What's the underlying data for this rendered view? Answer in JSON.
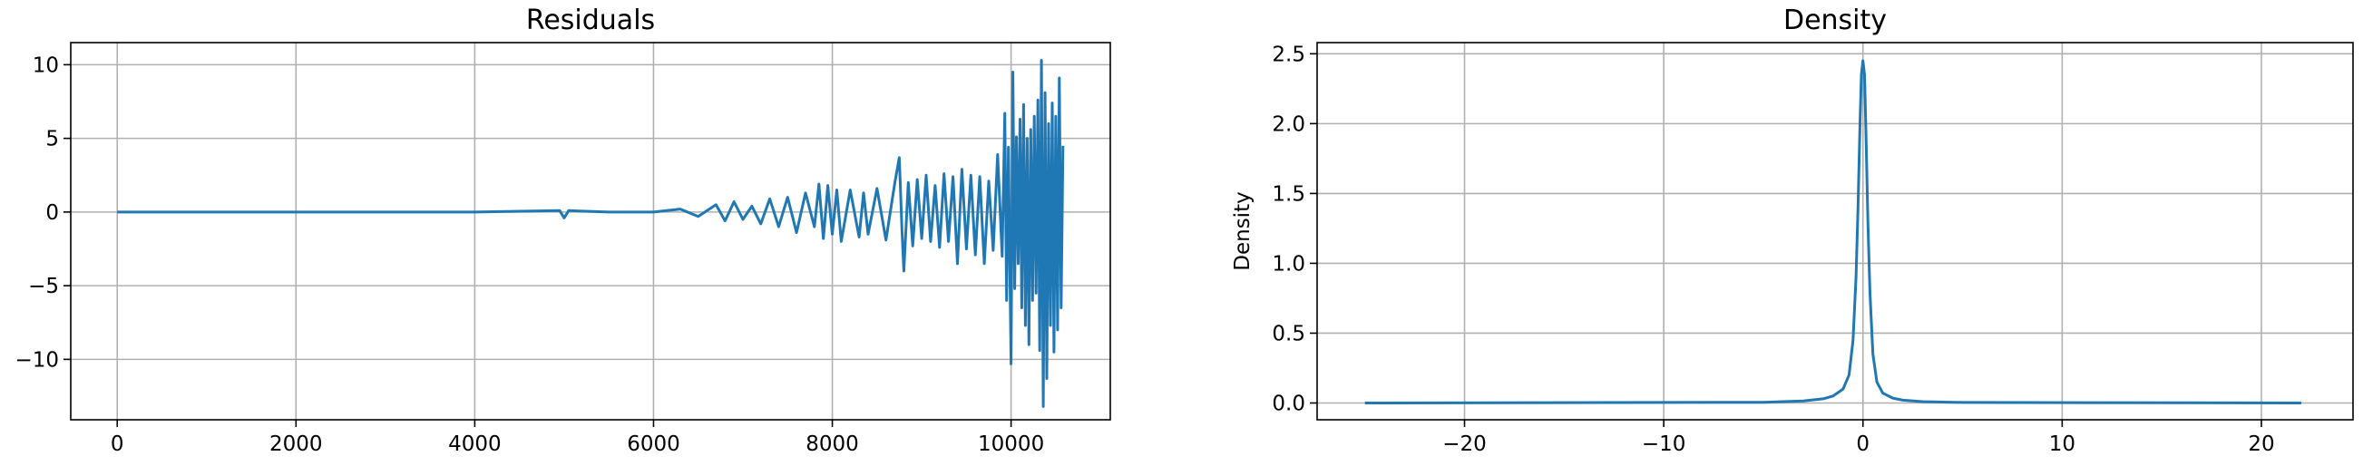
{
  "chart_data": [
    {
      "type": "line",
      "title": "Residuals",
      "xlabel": "",
      "ylabel": "",
      "xlim": [
        -520,
        11110
      ],
      "ylim": [
        -14.1,
        11.5
      ],
      "grid": true,
      "xticks": [
        0,
        2000,
        4000,
        6000,
        8000,
        10000
      ],
      "xtick_labels": [
        "0",
        "2000",
        "4000",
        "6000",
        "8000",
        "10000"
      ],
      "yticks": [
        -10,
        -5,
        0,
        5,
        10
      ],
      "ytick_labels": [
        "−10",
        "−5",
        "0",
        "5",
        "10"
      ],
      "color": "#1f77b4",
      "series": [
        {
          "x": [
            0,
            1000,
            2000,
            3000,
            4000,
            4950,
            5000,
            5050,
            5500,
            6000,
            6300,
            6500,
            6700,
            6800,
            6900,
            7000,
            7100,
            7200,
            7300,
            7400,
            7500,
            7600,
            7700,
            7800,
            7850,
            7900,
            7950,
            8000,
            8050,
            8100,
            8200,
            8300,
            8350,
            8400,
            8500,
            8600,
            8700,
            8750,
            8780,
            8800,
            8850,
            8900,
            8950,
            9000,
            9050,
            9100,
            9150,
            9200,
            9250,
            9300,
            9350,
            9400,
            9450,
            9500,
            9550,
            9600,
            9650,
            9700,
            9750,
            9800,
            9850,
            9900,
            9930,
            9950,
            9970,
            10000,
            10020,
            10040,
            10060,
            10080,
            10100,
            10120,
            10140,
            10160,
            10180,
            10200,
            10220,
            10240,
            10260,
            10280,
            10300,
            10320,
            10340,
            10360,
            10380,
            10400,
            10420,
            10440,
            10460,
            10480,
            10500,
            10520,
            10540,
            10560,
            10580
          ],
          "y": [
            0,
            0,
            0,
            0,
            0,
            0.1,
            -0.4,
            0.1,
            0,
            0,
            0.2,
            -0.3,
            0.5,
            -0.6,
            0.7,
            -0.5,
            0.4,
            -0.8,
            0.9,
            -1.0,
            1.0,
            -1.4,
            1.3,
            -1.0,
            1.9,
            -1.8,
            1.8,
            -1.5,
            1.5,
            -2.0,
            1.5,
            -1.7,
            1.3,
            -1.5,
            1.6,
            -1.9,
            2.0,
            3.7,
            -1.3,
            -4.0,
            2.0,
            -2.3,
            2.2,
            -1.8,
            2.5,
            -2.0,
            1.8,
            -2.4,
            2.6,
            -2.0,
            2.4,
            -3.5,
            2.9,
            -2.5,
            2.5,
            -2.9,
            2.4,
            -3.5,
            2.1,
            -2.6,
            3.9,
            -3.0,
            6.7,
            -6.0,
            4.4,
            -10.3,
            9.5,
            -5.2,
            5.1,
            -3.5,
            6.3,
            -6.5,
            7.3,
            -7.7,
            5.0,
            -9.0,
            5.6,
            -6.0,
            6.5,
            -5.5,
            7.6,
            -9.4,
            10.3,
            -13.2,
            8.1,
            -11.3,
            6.0,
            -7.7,
            7.4,
            -9.5,
            6.5,
            -8.0,
            9.1,
            -6.5,
            4.5
          ]
        }
      ]
    },
    {
      "type": "line",
      "title": "Density",
      "xlabel": "",
      "ylabel": "Density",
      "xlim": [
        -27.4,
        24.6
      ],
      "ylim": [
        -0.12,
        2.58
      ],
      "grid": true,
      "xticks": [
        -20,
        -10,
        0,
        10,
        20
      ],
      "xtick_labels": [
        "−20",
        "−10",
        "0",
        "10",
        "20"
      ],
      "yticks": [
        0.0,
        0.5,
        1.0,
        1.5,
        2.0,
        2.5
      ],
      "ytick_labels": [
        "0.0",
        "0.5",
        "1.0",
        "1.5",
        "2.0",
        "2.5"
      ],
      "color": "#1f77b4",
      "series": [
        {
          "x": [
            -25,
            -5,
            -3,
            -2,
            -1.5,
            -1,
            -0.7,
            -0.5,
            -0.35,
            -0.25,
            -0.15,
            -0.08,
            0,
            0.08,
            0.15,
            0.25,
            0.35,
            0.5,
            0.7,
            1,
            1.5,
            2,
            3,
            5,
            22
          ],
          "y": [
            0,
            0.005,
            0.015,
            0.03,
            0.05,
            0.1,
            0.2,
            0.45,
            0.9,
            1.4,
            2.0,
            2.35,
            2.45,
            2.35,
            1.95,
            1.3,
            0.8,
            0.35,
            0.15,
            0.07,
            0.035,
            0.02,
            0.01,
            0.004,
            0
          ]
        }
      ]
    }
  ]
}
